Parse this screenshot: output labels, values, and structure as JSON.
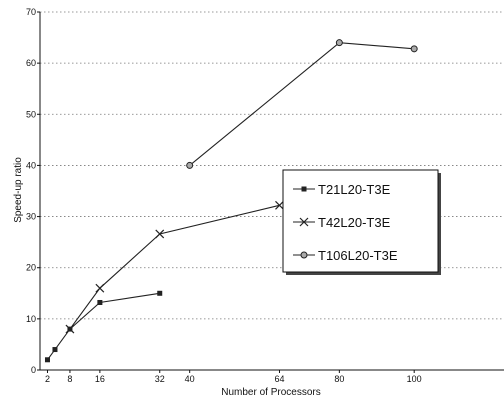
{
  "chart_data": {
    "type": "line",
    "title": "",
    "xlabel": "Number of Processors",
    "ylabel": "Speed-up ratio",
    "xlim": [
      0,
      124
    ],
    "ylim": [
      0,
      70
    ],
    "x_ticks": [
      2,
      8,
      16,
      32,
      40,
      64,
      80,
      100
    ],
    "y_ticks": [
      0,
      10,
      20,
      30,
      40,
      50,
      60,
      70
    ],
    "grid": "horizontal-dotted",
    "legend_position": "center-right",
    "series": [
      {
        "name": "T21L20-T3E",
        "marker": "square",
        "color": "#222222",
        "x": [
          2,
          4,
          8,
          16,
          32
        ],
        "y": [
          2,
          4,
          8,
          13.2,
          15
        ]
      },
      {
        "name": "T42L20-T3E",
        "marker": "x",
        "color": "#222222",
        "x": [
          8,
          16,
          32,
          64
        ],
        "y": [
          8,
          16,
          26.6,
          32.2
        ]
      },
      {
        "name": "T106L20-T3E",
        "marker": "circle",
        "color": "#222222",
        "x": [
          40,
          80,
          100
        ],
        "y": [
          40,
          64,
          62.8
        ]
      }
    ]
  }
}
